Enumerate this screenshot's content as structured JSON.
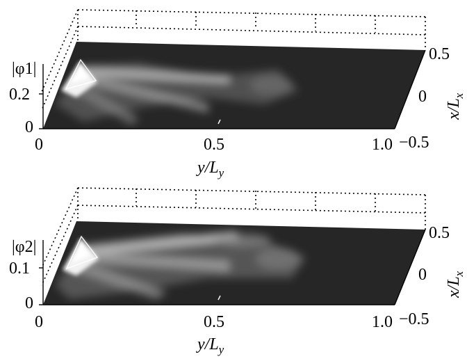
{
  "chart_data": [
    {
      "type": "surface3d",
      "zlabel": "|φ1|",
      "z_ticks": [
        "0.2",
        "0"
      ],
      "zlim": [
        0,
        0.25
      ],
      "xlabel": "y/Ly",
      "x_ticks": [
        "0",
        "0.5",
        "1.0"
      ],
      "xlim": [
        0,
        1.0
      ],
      "ylabel": "x/Lx",
      "y_ticks": [
        "0.5",
        "0",
        "−0.5"
      ],
      "ylim": [
        -0.5,
        0.5
      ],
      "colormap": "grayscale",
      "peak": {
        "y_over_Ly": 0.1,
        "x_over_Lx": 0.3,
        "value": 0.25
      },
      "background": "#262626"
    },
    {
      "type": "surface3d",
      "zlabel": "|φ2|",
      "z_ticks": [
        "0.1",
        "0"
      ],
      "zlim": [
        0,
        0.15
      ],
      "xlabel": "y/Ly",
      "x_ticks": [
        "0",
        "0.5",
        "1.0"
      ],
      "xlim": [
        0,
        1.0
      ],
      "ylabel": "x/Lx",
      "y_ticks": [
        "0.5",
        "0",
        "−0.5"
      ],
      "ylim": [
        -0.5,
        0.5
      ],
      "colormap": "grayscale",
      "peak": {
        "y_over_Ly": 0.1,
        "x_over_Lx": 0.3,
        "value": 0.15
      },
      "background": "#262626"
    }
  ],
  "labels": {
    "top_z_label": "|φ1|",
    "top_z_tick_hi": "0.2",
    "top_z_tick_lo": "0",
    "top_x_tick_0": "0",
    "top_x_tick_1": "0.5",
    "top_x_tick_2": "1.0",
    "top_y_tick_0": "0.5",
    "top_y_tick_1": "0",
    "top_y_tick_2": "−0.5",
    "bottom_z_label": "|φ2|",
    "bottom_z_tick_hi": "0.1",
    "bottom_z_tick_lo": "0",
    "bottom_x_tick_0": "0",
    "bottom_x_tick_1": "0.5",
    "bottom_x_tick_2": "1.0",
    "bottom_y_tick_0": "0.5",
    "bottom_y_tick_1": "0",
    "bottom_y_tick_2": "−0.5",
    "xlabel_main": "y/L",
    "xlabel_sub": "y",
    "ylabel_main": "x/L",
    "ylabel_sub": "x"
  }
}
